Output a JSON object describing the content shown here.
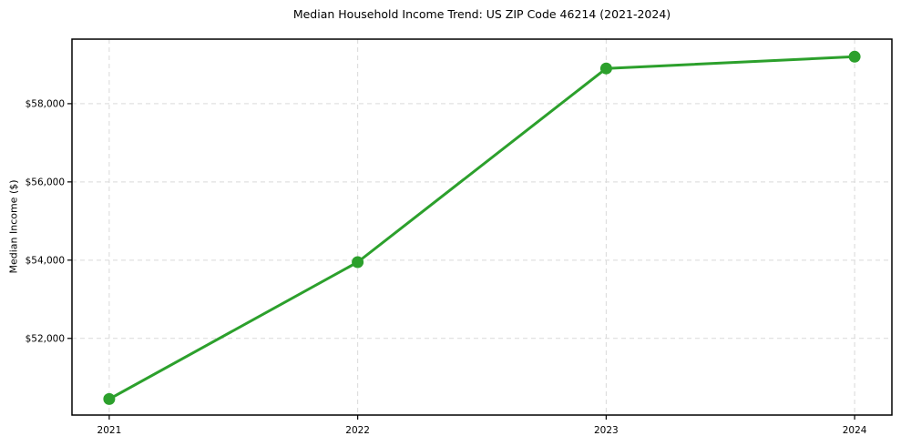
{
  "chart_data": {
    "type": "line",
    "title": "Median Household Income Trend: US ZIP Code 46214 (2021-2024)",
    "xlabel": "",
    "ylabel": "Median Income ($)",
    "x": [
      2021,
      2022,
      2023,
      2024
    ],
    "values": [
      50450,
      53950,
      58900,
      59200
    ],
    "series_name": "Median Household Income",
    "xlim": [
      2020.85,
      2024.15
    ],
    "ylim": [
      50040,
      59650
    ],
    "xticks": {
      "values": [
        2021,
        2022,
        2023,
        2024
      ],
      "labels": [
        "2021",
        "2022",
        "2023",
        "2024"
      ]
    },
    "yticks": {
      "values": [
        52000,
        54000,
        56000,
        58000
      ],
      "labels": [
        "$52,000",
        "$54,000",
        "$56,000",
        "$58,000"
      ]
    },
    "grid": true,
    "grid_style": "dashed",
    "legend": "none",
    "colors": {
      "line": "#2ca02c",
      "marker": "#2ca02c",
      "grid": "#d9d9d9",
      "axis": "#000000",
      "background": "#ffffff",
      "text": "#000000"
    },
    "line_width": 3,
    "marker_size": 6.5
  }
}
